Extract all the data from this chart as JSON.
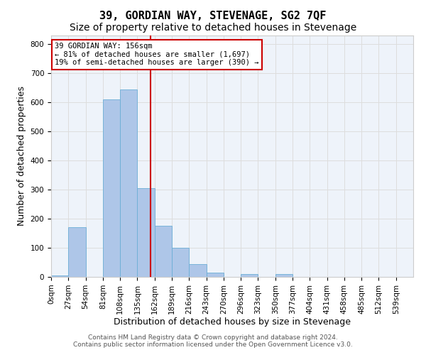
{
  "title": "39, GORDIAN WAY, STEVENAGE, SG2 7QF",
  "subtitle": "Size of property relative to detached houses in Stevenage",
  "xlabel": "Distribution of detached houses by size in Stevenage",
  "ylabel": "Number of detached properties",
  "bar_labels": [
    "0sqm",
    "27sqm",
    "54sqm",
    "81sqm",
    "108sqm",
    "135sqm",
    "162sqm",
    "189sqm",
    "216sqm",
    "243sqm",
    "270sqm",
    "296sqm",
    "323sqm",
    "350sqm",
    "377sqm",
    "404sqm",
    "431sqm",
    "458sqm",
    "485sqm",
    "512sqm",
    "539sqm"
  ],
  "bar_values": [
    5,
    170,
    0,
    610,
    645,
    305,
    175,
    100,
    45,
    15,
    0,
    10,
    0,
    10,
    0,
    0,
    0,
    0,
    0,
    0,
    0
  ],
  "bar_color": "#aec6e8",
  "bar_edge_color": "#6baed6",
  "annotation_text": "39 GORDIAN WAY: 156sqm\n← 81% of detached houses are smaller (1,697)\n19% of semi-detached houses are larger (390) →",
  "annotation_box_color": "#ffffff",
  "annotation_box_edge_color": "#cc0000",
  "red_line_color": "#cc0000",
  "ylim": [
    0,
    830
  ],
  "yticks": [
    0,
    100,
    200,
    300,
    400,
    500,
    600,
    700,
    800
  ],
  "grid_color": "#dddddd",
  "bg_color": "#eef3fa",
  "footer_line1": "Contains HM Land Registry data © Crown copyright and database right 2024.",
  "footer_line2": "Contains public sector information licensed under the Open Government Licence v3.0.",
  "title_fontsize": 11,
  "subtitle_fontsize": 10,
  "axis_label_fontsize": 9,
  "tick_fontsize": 7.5
}
